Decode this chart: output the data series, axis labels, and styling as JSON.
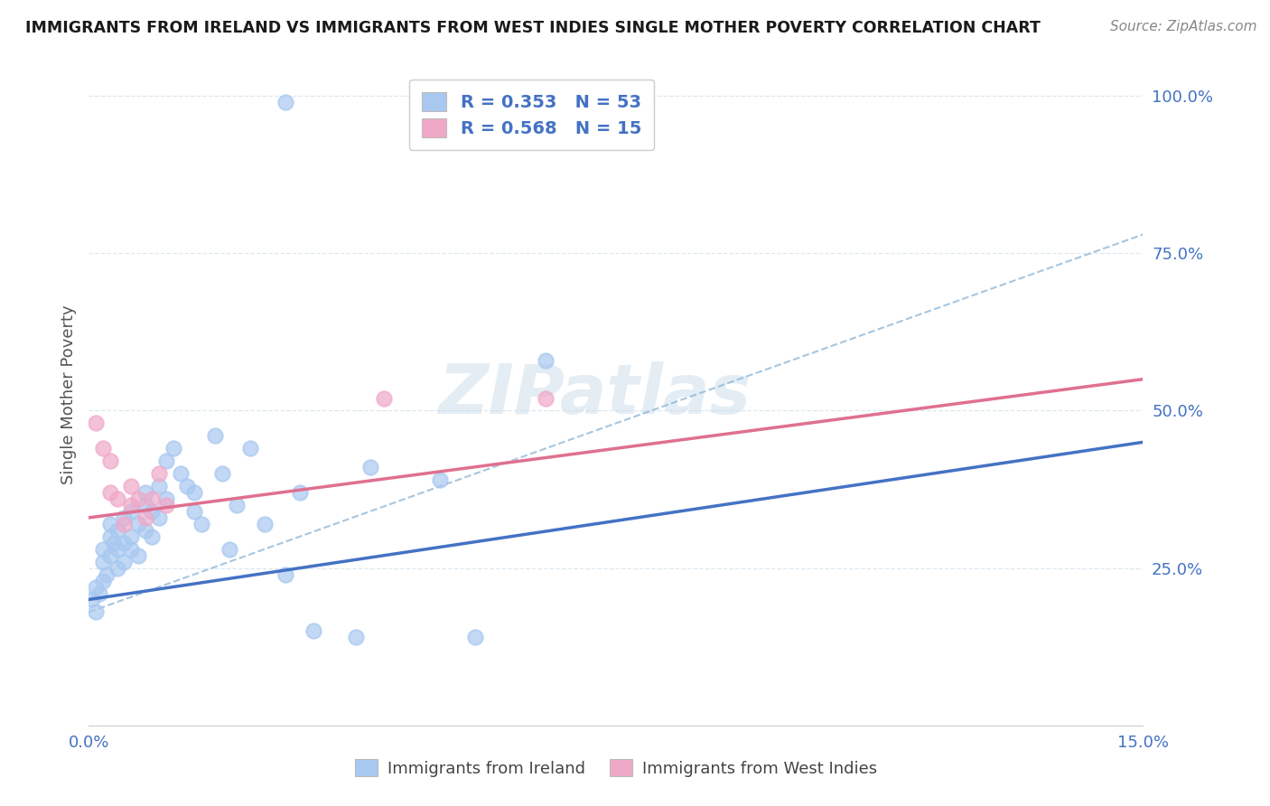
{
  "title": "IMMIGRANTS FROM IRELAND VS IMMIGRANTS FROM WEST INDIES SINGLE MOTHER POVERTY CORRELATION CHART",
  "source": "Source: ZipAtlas.com",
  "ylabel": "Single Mother Poverty",
  "yticks": [
    0.0,
    0.25,
    0.5,
    0.75,
    1.0
  ],
  "ytick_labels": [
    "",
    "25.0%",
    "50.0%",
    "75.0%",
    "100.0%"
  ],
  "xlim": [
    0.0,
    0.15
  ],
  "ylim": [
    0.0,
    1.05
  ],
  "watermark": "ZIPatlas",
  "ireland_R": "0.353",
  "ireland_N": "53",
  "westindies_R": "0.568",
  "westindies_N": "15",
  "ireland_color": "#a8c8f0",
  "westindies_color": "#f0a8c8",
  "ireland_line_color": "#4472c4",
  "westindies_line_color": "#e07090",
  "dashed_line_color": "#90b8d8",
  "ireland_x": [
    0.0005,
    0.001,
    0.001,
    0.0015,
    0.002,
    0.002,
    0.002,
    0.0025,
    0.003,
    0.003,
    0.003,
    0.0035,
    0.004,
    0.004,
    0.004,
    0.005,
    0.005,
    0.005,
    0.006,
    0.006,
    0.006,
    0.007,
    0.007,
    0.008,
    0.008,
    0.008,
    0.009,
    0.009,
    0.01,
    0.01,
    0.011,
    0.011,
    0.012,
    0.013,
    0.014,
    0.015,
    0.015,
    0.016,
    0.018,
    0.019,
    0.02,
    0.021,
    0.023,
    0.025,
    0.028,
    0.03,
    0.032,
    0.038,
    0.04,
    0.05,
    0.055,
    0.065,
    0.028
  ],
  "ireland_y": [
    0.2,
    0.22,
    0.18,
    0.21,
    0.23,
    0.26,
    0.28,
    0.24,
    0.27,
    0.3,
    0.32,
    0.29,
    0.25,
    0.28,
    0.31,
    0.29,
    0.26,
    0.33,
    0.3,
    0.34,
    0.28,
    0.32,
    0.27,
    0.35,
    0.31,
    0.37,
    0.3,
    0.34,
    0.38,
    0.33,
    0.42,
    0.36,
    0.44,
    0.4,
    0.38,
    0.37,
    0.34,
    0.32,
    0.46,
    0.4,
    0.28,
    0.35,
    0.44,
    0.32,
    0.24,
    0.37,
    0.15,
    0.14,
    0.41,
    0.39,
    0.14,
    0.58,
    0.99
  ],
  "westindies_x": [
    0.001,
    0.002,
    0.003,
    0.003,
    0.004,
    0.005,
    0.006,
    0.006,
    0.007,
    0.008,
    0.009,
    0.01,
    0.011,
    0.042,
    0.065
  ],
  "westindies_y": [
    0.48,
    0.44,
    0.37,
    0.42,
    0.36,
    0.32,
    0.35,
    0.38,
    0.36,
    0.33,
    0.36,
    0.4,
    0.35,
    0.52,
    0.52
  ],
  "ireland_trend_x": [
    0.0,
    0.15
  ],
  "ireland_trend_y": [
    0.2,
    0.45
  ],
  "westindies_trend_x": [
    0.0,
    0.15
  ],
  "westindies_trend_y": [
    0.33,
    0.55
  ],
  "dashed_trend_x": [
    0.0,
    0.15
  ],
  "dashed_trend_y": [
    0.18,
    0.78
  ],
  "legend_ireland_label": "R = 0.353   N = 53",
  "legend_westindies_label": "R = 0.568   N = 15",
  "bottom_legend_ireland": "Immigrants from Ireland",
  "bottom_legend_westindies": "Immigrants from West Indies",
  "background_color": "#ffffff",
  "grid_color": "#dce8f0",
  "tick_color": "#4472c4",
  "title_color": "#1a1a1a",
  "source_color": "#888888"
}
